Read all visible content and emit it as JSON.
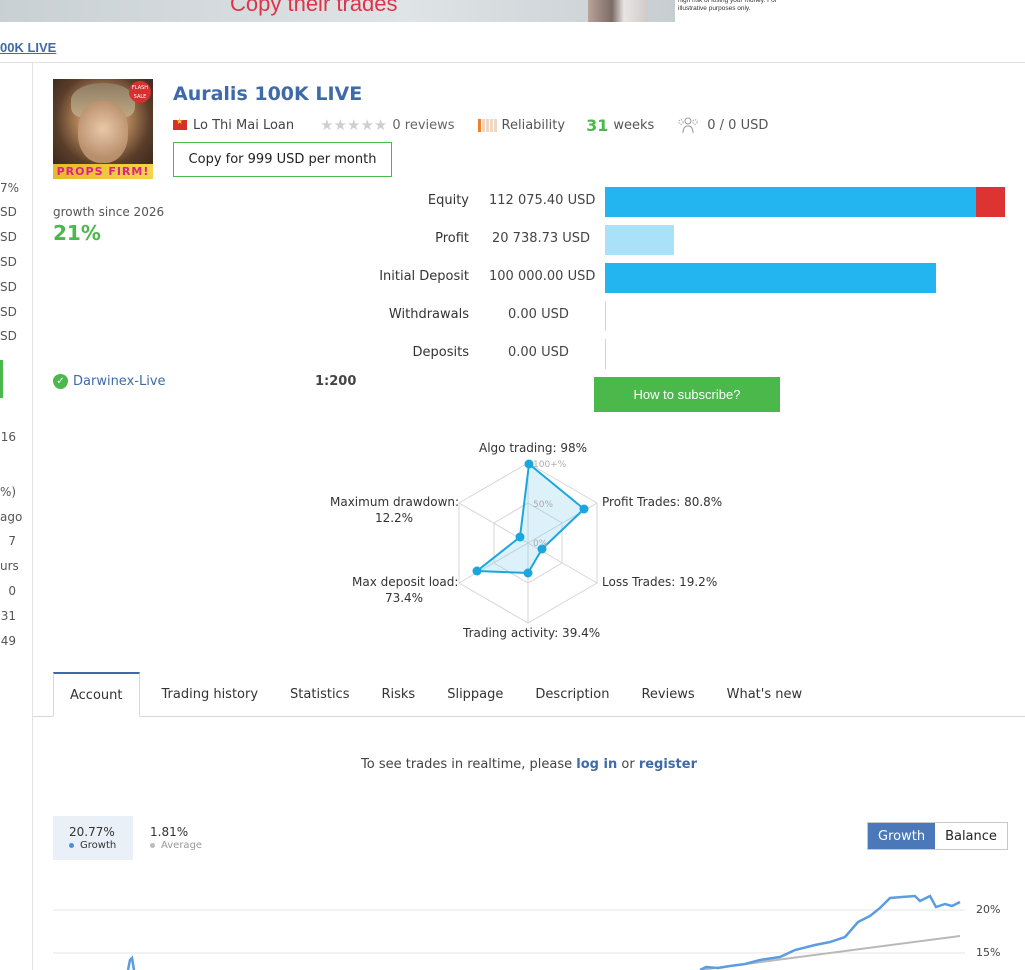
{
  "banner": {
    "headline": "Copy their trades",
    "disclaimer": "high risk of losing your money. For illustrative purposes only."
  },
  "breadcrumb": {
    "link": "00K LIVE"
  },
  "left_column": [
    "7%",
    "SD",
    "SD",
    "SD",
    "SD",
    "SD",
    "SD",
    "16",
    "%)",
    "ago",
    "7",
    "urs",
    "0",
    "31",
    "49"
  ],
  "avatar": {
    "badge": "FLASH SALE",
    "caption": "PROPS FIRM!"
  },
  "signal": {
    "title": "Auralis 100K LIVE",
    "author": "Lo Thi Mai Loan",
    "reviews": "0 reviews",
    "reliability_label": "Reliability",
    "weeks_number": "31",
    "weeks_label": "weeks",
    "subscribers": "0 / 0 USD",
    "copy_button": "Copy for 999 USD per month"
  },
  "growth": {
    "label": "growth since 2026",
    "value": "21%"
  },
  "stats": [
    {
      "label": "Equity",
      "value": "112 075.40 USD"
    },
    {
      "label": "Profit",
      "value": "20 738.73 USD"
    },
    {
      "label": "Initial Deposit",
      "value": "100 000.00 USD"
    },
    {
      "label": "Withdrawals",
      "value": "0.00 USD"
    },
    {
      "label": "Deposits",
      "value": "0.00 USD"
    }
  ],
  "stat_bar_fractions": {
    "equity": 1.0,
    "equity_red_fraction": 0.07,
    "profit": 0.17,
    "initial_deposit": 0.83
  },
  "colors": {
    "accent_green": "#4bb84b",
    "link_blue": "#3e6aa8",
    "bar_blue": "#22b5f0",
    "bar_light_blue": "#a8e1f8",
    "bar_red": "#dd3333"
  },
  "broker": {
    "name": "Darwinex-Live",
    "leverage": "1:200"
  },
  "subscribe_button": "How to subscribe?",
  "radar": {
    "algo": "Algo trading: 98%",
    "profit_trades": "Profit Trades: 80.8%",
    "loss_trades": "Loss Trades: 19.2%",
    "trading_activity": "Trading activity: 39.4%",
    "max_deposit_load": "Max deposit load:",
    "max_deposit_load_value": "73.4%",
    "max_drawdown": "Maximum drawdown:",
    "max_drawdown_value": "12.2%",
    "scale_100": "100+%",
    "scale_50": "50%",
    "scale_0": "0%"
  },
  "chart_data": {
    "type": "line",
    "title": "",
    "series": [
      {
        "name": "Growth",
        "value": "20.77%"
      },
      {
        "name": "Average",
        "value": "1.81%"
      }
    ],
    "y_ticks": [
      "20%",
      "15%"
    ],
    "active_view": "Growth"
  },
  "tabs": [
    "Account",
    "Trading history",
    "Statistics",
    "Risks",
    "Slippage",
    "Description",
    "Reviews",
    "What's new"
  ],
  "realtime": {
    "prefix": "To see trades in realtime, please",
    "login": "log in",
    "middle": "or",
    "register": "register"
  },
  "legend": {
    "growth_value": "20.77%",
    "growth_label": "Growth",
    "average_value": "1.81%",
    "average_label": "Average"
  },
  "toggle": {
    "growth": "Growth",
    "balance": "Balance"
  },
  "icons": {
    "stars": "star-icon",
    "subscribers": "users-icon",
    "verified": "shield-check-icon",
    "flag": "vietnam-flag-icon"
  }
}
